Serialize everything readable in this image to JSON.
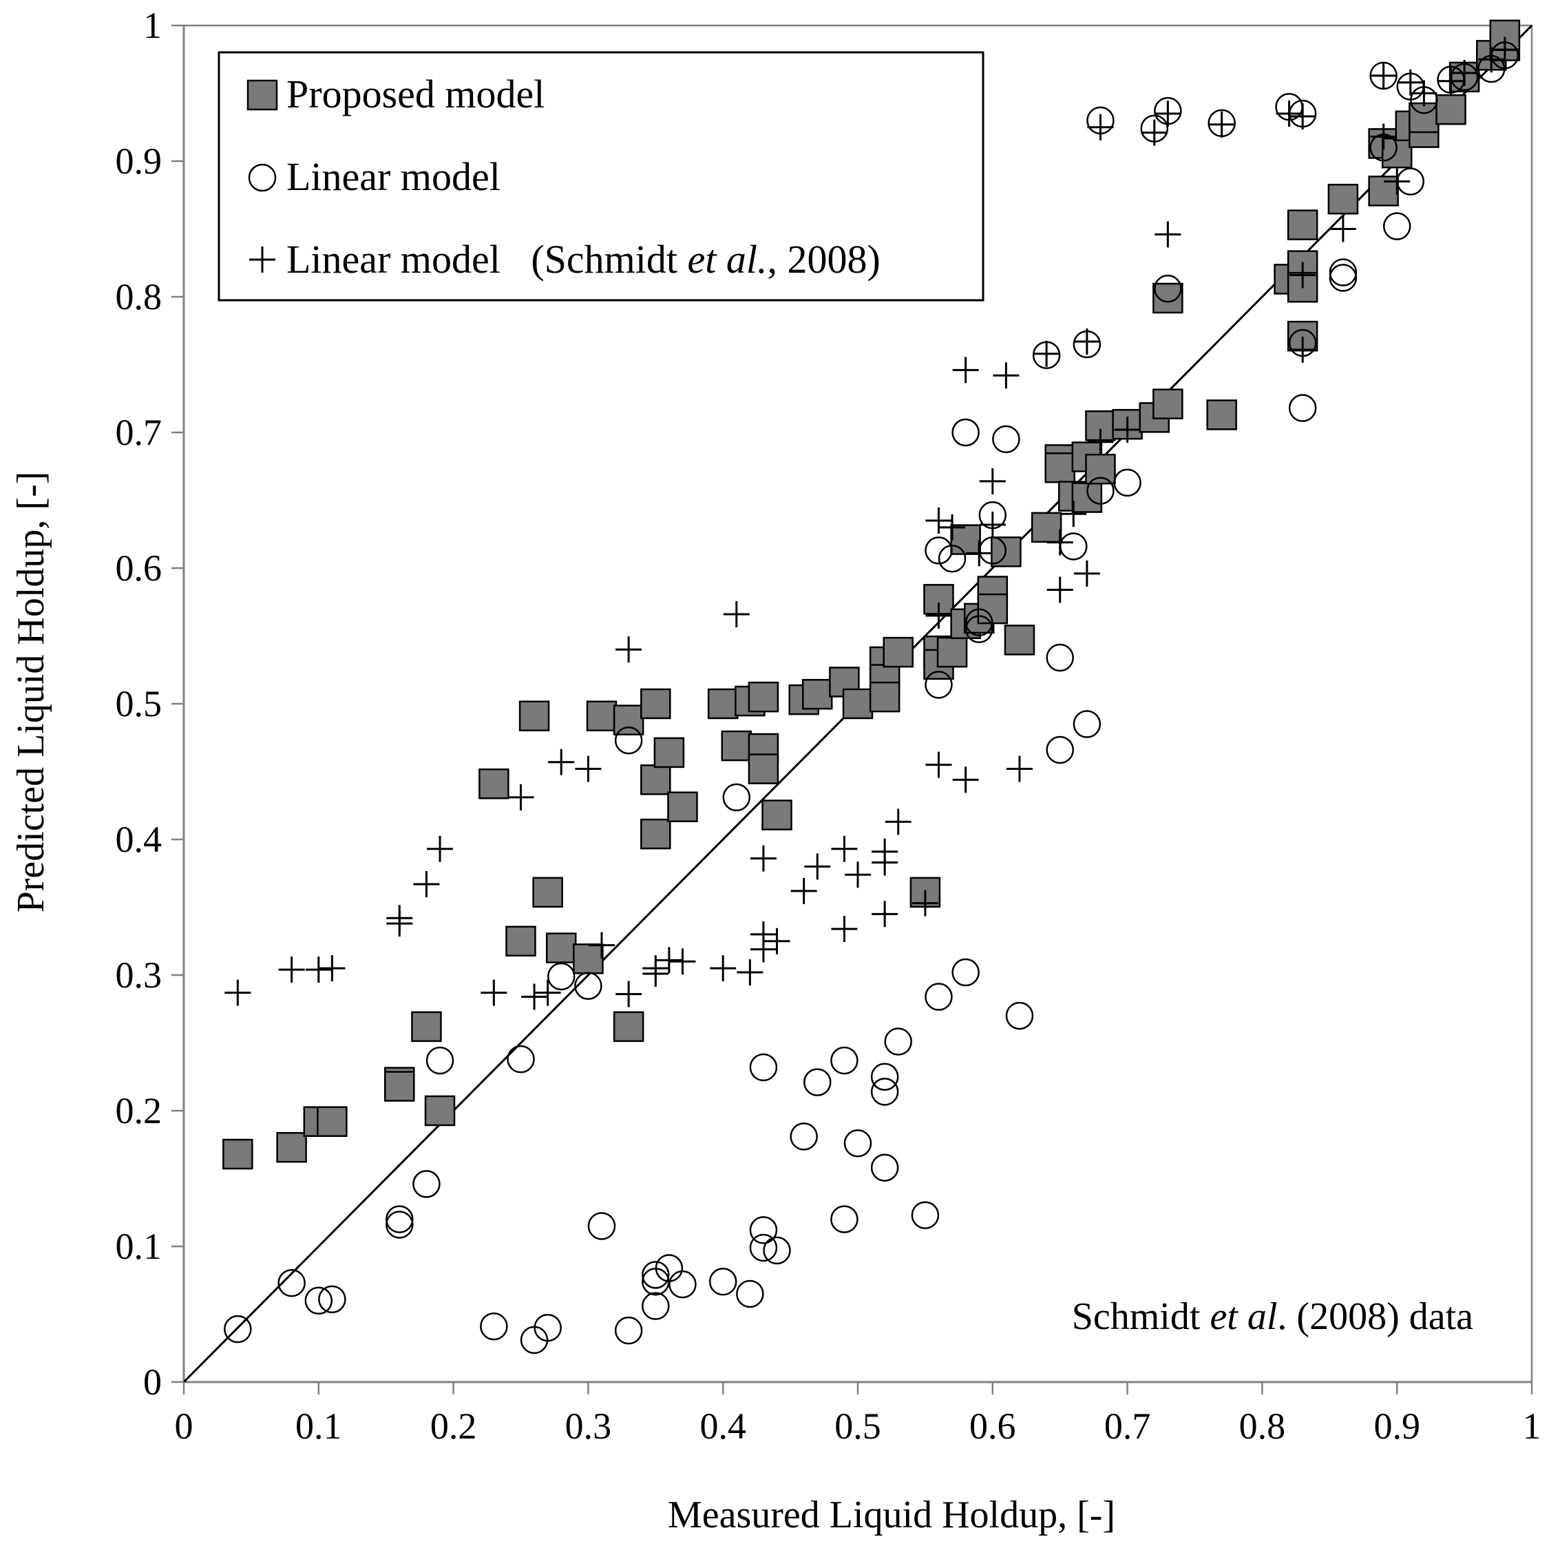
{
  "chart_data": {
    "type": "scatter",
    "xlabel": "Measured Liquid Holdup, [-]",
    "ylabel": "Predicted Liquid Holdup, [-]",
    "xlim": [
      0,
      1
    ],
    "ylim": [
      0,
      1
    ],
    "x_ticks": [
      "0",
      "0.1",
      "0.2",
      "0.3",
      "0.4",
      "0.5",
      "0.6",
      "0.7",
      "0.8",
      "0.9",
      "1"
    ],
    "y_ticks": [
      "0",
      "0.1",
      "0.2",
      "0.3",
      "0.4",
      "0.5",
      "0.6",
      "0.7",
      "0.8",
      "0.9",
      "1"
    ],
    "reference_line": {
      "from": [
        0,
        0
      ],
      "to": [
        1,
        1
      ]
    },
    "legend": {
      "position": "top-left",
      "entries": [
        {
          "label": "Proposed model",
          "marker": "square"
        },
        {
          "label": "Linear model",
          "marker": "circle"
        },
        {
          "label": "Linear model",
          "label_suffix": "(Schmidt ",
          "label_italic": "et al.",
          "label_end": ", 2008)",
          "marker": "plus"
        }
      ]
    },
    "annotation": {
      "prefix": "Schmidt ",
      "italic": "et al",
      "suffix": ". (2008) data",
      "position": "bottom-right"
    },
    "series": [
      {
        "name": "Proposed model",
        "marker": "square",
        "color": "#7a7a7a",
        "points": [
          [
            0.04,
            0.168
          ],
          [
            0.08,
            0.173
          ],
          [
            0.1,
            0.192
          ],
          [
            0.11,
            0.192
          ],
          [
            0.16,
            0.221
          ],
          [
            0.16,
            0.218
          ],
          [
            0.18,
            0.262
          ],
          [
            0.19,
            0.2
          ],
          [
            0.23,
            0.441
          ],
          [
            0.25,
            0.325
          ],
          [
            0.26,
            0.491
          ],
          [
            0.27,
            0.361
          ],
          [
            0.28,
            0.32
          ],
          [
            0.3,
            0.312
          ],
          [
            0.31,
            0.491
          ],
          [
            0.33,
            0.488
          ],
          [
            0.33,
            0.262
          ],
          [
            0.35,
            0.5
          ],
          [
            0.35,
            0.444
          ],
          [
            0.35,
            0.404
          ],
          [
            0.36,
            0.464
          ],
          [
            0.37,
            0.424
          ],
          [
            0.4,
            0.5
          ],
          [
            0.41,
            0.469
          ],
          [
            0.42,
            0.502
          ],
          [
            0.43,
            0.505
          ],
          [
            0.43,
            0.467
          ],
          [
            0.43,
            0.452
          ],
          [
            0.44,
            0.418
          ],
          [
            0.46,
            0.503
          ],
          [
            0.47,
            0.507
          ],
          [
            0.49,
            0.516
          ],
          [
            0.5,
            0.5
          ],
          [
            0.52,
            0.531
          ],
          [
            0.52,
            0.518
          ],
          [
            0.52,
            0.505
          ],
          [
            0.53,
            0.538
          ],
          [
            0.55,
            0.361
          ],
          [
            0.56,
            0.577
          ],
          [
            0.56,
            0.539
          ],
          [
            0.56,
            0.529
          ],
          [
            0.57,
            0.538
          ],
          [
            0.58,
            0.621
          ],
          [
            0.58,
            0.559
          ],
          [
            0.59,
            0.563
          ],
          [
            0.6,
            0.583
          ],
          [
            0.6,
            0.57
          ],
          [
            0.61,
            0.612
          ],
          [
            0.62,
            0.547
          ],
          [
            0.64,
            0.63
          ],
          [
            0.65,
            0.68
          ],
          [
            0.65,
            0.674
          ],
          [
            0.66,
            0.653
          ],
          [
            0.67,
            0.682
          ],
          [
            0.67,
            0.652
          ],
          [
            0.68,
            0.705
          ],
          [
            0.68,
            0.673
          ],
          [
            0.7,
            0.706
          ],
          [
            0.72,
            0.711
          ],
          [
            0.73,
            0.721
          ],
          [
            0.73,
            0.799
          ],
          [
            0.77,
            0.713
          ],
          [
            0.82,
            0.813
          ],
          [
            0.83,
            0.853
          ],
          [
            0.83,
            0.823
          ],
          [
            0.83,
            0.807
          ],
          [
            0.83,
            0.771
          ],
          [
            0.86,
            0.872
          ],
          [
            0.89,
            0.913
          ],
          [
            0.89,
            0.878
          ],
          [
            0.9,
            0.906
          ],
          [
            0.91,
            0.926
          ],
          [
            0.92,
            0.921
          ],
          [
            0.92,
            0.932
          ],
          [
            0.94,
            0.938
          ],
          [
            0.95,
            0.962
          ],
          [
            0.97,
            0.978
          ],
          [
            0.98,
            0.985
          ],
          [
            0.98,
            0.993
          ]
        ]
      },
      {
        "name": "Linear model",
        "marker": "circle",
        "color": "#000000",
        "points": [
          [
            0.04,
            0.039
          ],
          [
            0.08,
            0.073
          ],
          [
            0.1,
            0.06
          ],
          [
            0.11,
            0.061
          ],
          [
            0.16,
            0.12
          ],
          [
            0.16,
            0.116
          ],
          [
            0.18,
            0.146
          ],
          [
            0.19,
            0.237
          ],
          [
            0.23,
            0.041
          ],
          [
            0.25,
            0.238
          ],
          [
            0.26,
            0.031
          ],
          [
            0.27,
            0.04
          ],
          [
            0.28,
            0.299
          ],
          [
            0.3,
            0.292
          ],
          [
            0.31,
            0.115
          ],
          [
            0.33,
            0.038
          ],
          [
            0.33,
            0.473
          ],
          [
            0.35,
            0.079
          ],
          [
            0.35,
            0.074
          ],
          [
            0.35,
            0.056
          ],
          [
            0.36,
            0.084
          ],
          [
            0.37,
            0.072
          ],
          [
            0.4,
            0.074
          ],
          [
            0.41,
            0.431
          ],
          [
            0.42,
            0.065
          ],
          [
            0.43,
            0.232
          ],
          [
            0.43,
            0.112
          ],
          [
            0.43,
            0.099
          ],
          [
            0.44,
            0.097
          ],
          [
            0.46,
            0.181
          ],
          [
            0.47,
            0.221
          ],
          [
            0.49,
            0.237
          ],
          [
            0.49,
            0.12
          ],
          [
            0.5,
            0.176
          ],
          [
            0.52,
            0.225
          ],
          [
            0.52,
            0.214
          ],
          [
            0.52,
            0.158
          ],
          [
            0.53,
            0.251
          ],
          [
            0.55,
            0.123
          ],
          [
            0.56,
            0.613
          ],
          [
            0.56,
            0.514
          ],
          [
            0.56,
            0.284
          ],
          [
            0.57,
            0.607
          ],
          [
            0.58,
            0.7
          ],
          [
            0.58,
            0.302
          ],
          [
            0.59,
            0.56
          ],
          [
            0.59,
            0.555
          ],
          [
            0.6,
            0.639
          ],
          [
            0.6,
            0.613
          ],
          [
            0.61,
            0.695
          ],
          [
            0.62,
            0.27
          ],
          [
            0.64,
            0.757
          ],
          [
            0.65,
            0.534
          ],
          [
            0.65,
            0.466
          ],
          [
            0.66,
            0.616
          ],
          [
            0.67,
            0.765
          ],
          [
            0.67,
            0.485
          ],
          [
            0.68,
            0.93
          ],
          [
            0.68,
            0.657
          ],
          [
            0.7,
            0.663
          ],
          [
            0.72,
            0.924
          ],
          [
            0.73,
            0.937
          ],
          [
            0.73,
            0.806
          ],
          [
            0.77,
            0.928
          ],
          [
            0.82,
            0.94
          ],
          [
            0.83,
            0.935
          ],
          [
            0.83,
            0.766
          ],
          [
            0.83,
            0.718
          ],
          [
            0.86,
            0.818
          ],
          [
            0.86,
            0.814
          ],
          [
            0.89,
            0.963
          ],
          [
            0.89,
            0.91
          ],
          [
            0.9,
            0.852
          ],
          [
            0.91,
            0.955
          ],
          [
            0.91,
            0.885
          ],
          [
            0.92,
            0.945
          ],
          [
            0.94,
            0.96
          ],
          [
            0.95,
            0.962
          ],
          [
            0.97,
            0.968
          ],
          [
            0.98,
            0.978
          ]
        ]
      },
      {
        "name": "Linear model (Schmidt et al., 2008)",
        "marker": "plus",
        "color": "#000000",
        "points": [
          [
            0.04,
            0.287
          ],
          [
            0.08,
            0.304
          ],
          [
            0.1,
            0.304
          ],
          [
            0.11,
            0.305
          ],
          [
            0.16,
            0.342
          ],
          [
            0.16,
            0.338
          ],
          [
            0.18,
            0.367
          ],
          [
            0.19,
            0.393
          ],
          [
            0.23,
            0.287
          ],
          [
            0.25,
            0.431
          ],
          [
            0.26,
            0.284
          ],
          [
            0.27,
            0.287
          ],
          [
            0.28,
            0.457
          ],
          [
            0.3,
            0.452
          ],
          [
            0.31,
            0.322
          ],
          [
            0.33,
            0.286
          ],
          [
            0.33,
            0.54
          ],
          [
            0.35,
            0.305
          ],
          [
            0.35,
            0.301
          ],
          [
            0.36,
            0.311
          ],
          [
            0.37,
            0.31
          ],
          [
            0.4,
            0.305
          ],
          [
            0.41,
            0.566
          ],
          [
            0.42,
            0.302
          ],
          [
            0.43,
            0.386
          ],
          [
            0.43,
            0.33
          ],
          [
            0.43,
            0.319
          ],
          [
            0.44,
            0.325
          ],
          [
            0.46,
            0.362
          ],
          [
            0.47,
            0.38
          ],
          [
            0.49,
            0.393
          ],
          [
            0.49,
            0.334
          ],
          [
            0.5,
            0.374
          ],
          [
            0.52,
            0.391
          ],
          [
            0.52,
            0.383
          ],
          [
            0.52,
            0.345
          ],
          [
            0.53,
            0.413
          ],
          [
            0.55,
            0.353
          ],
          [
            0.56,
            0.635
          ],
          [
            0.56,
            0.565
          ],
          [
            0.56,
            0.455
          ],
          [
            0.57,
            0.63
          ],
          [
            0.58,
            0.746
          ],
          [
            0.58,
            0.444
          ],
          [
            0.59,
            0.611
          ],
          [
            0.6,
            0.664
          ],
          [
            0.6,
            0.632
          ],
          [
            0.61,
            0.742
          ],
          [
            0.62,
            0.452
          ],
          [
            0.64,
            0.758
          ],
          [
            0.65,
            0.584
          ],
          [
            0.65,
            0.619
          ],
          [
            0.66,
            0.64
          ],
          [
            0.67,
            0.767
          ],
          [
            0.67,
            0.596
          ],
          [
            0.68,
            0.925
          ],
          [
            0.68,
            0.693
          ],
          [
            0.7,
            0.702
          ],
          [
            0.72,
            0.921
          ],
          [
            0.73,
            0.935
          ],
          [
            0.73,
            0.846
          ],
          [
            0.77,
            0.927
          ],
          [
            0.82,
            0.935
          ],
          [
            0.83,
            0.933
          ],
          [
            0.83,
            0.816
          ],
          [
            0.83,
            0.761
          ],
          [
            0.86,
            0.85
          ],
          [
            0.89,
            0.963
          ],
          [
            0.89,
            0.918
          ],
          [
            0.9,
            0.885
          ],
          [
            0.91,
            0.958
          ],
          [
            0.92,
            0.95
          ],
          [
            0.94,
            0.959
          ],
          [
            0.95,
            0.965
          ],
          [
            0.97,
            0.975
          ],
          [
            0.98,
            0.982
          ]
        ]
      }
    ]
  }
}
